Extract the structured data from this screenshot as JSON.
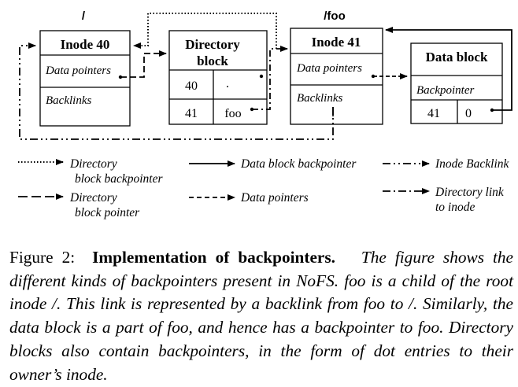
{
  "diagram": {
    "root_label": "/",
    "foo_label": "/foo",
    "inode40": {
      "title": "Inode 40",
      "field1": "Data pointers",
      "field2": "Backlinks"
    },
    "dirblock": {
      "title_line1": "Directory",
      "title_line2": "block",
      "rows": [
        {
          "col1": "40",
          "col2": "."
        },
        {
          "col1": "41",
          "col2": "foo"
        }
      ]
    },
    "inode41": {
      "title": "Inode 41",
      "field1": "Data pointers",
      "field2": "Backlinks"
    },
    "datablock": {
      "title": "Data block",
      "field1": "Backpointer",
      "col1": "41",
      "col2": "0"
    }
  },
  "legend": {
    "dir_backpointer_line1": "Directory",
    "dir_backpointer_line2": "block backpointer",
    "data_block_backpointer": "Data block backpointer",
    "inode_backlink": "Inode Backlink",
    "dir_block_pointer_line1": "Directory",
    "dir_block_pointer_line2": "block pointer",
    "data_pointers": "Data pointers",
    "dir_link_line1": "Directory link",
    "dir_link_line2": "to inode"
  },
  "caption": {
    "figure_label": "Figure 2:",
    "title": "Implementation of backpointers.",
    "body": "The figure shows the different kinds of backpointers present in NoFS. foo is a child of the root inode /. This link is represented by a backlink from foo to /.  Similarly, the data block is a part of foo, and hence has a backpointer to foo. Directory blocks also contain backpointers, in the form of dot entries to their owner’s inode."
  }
}
